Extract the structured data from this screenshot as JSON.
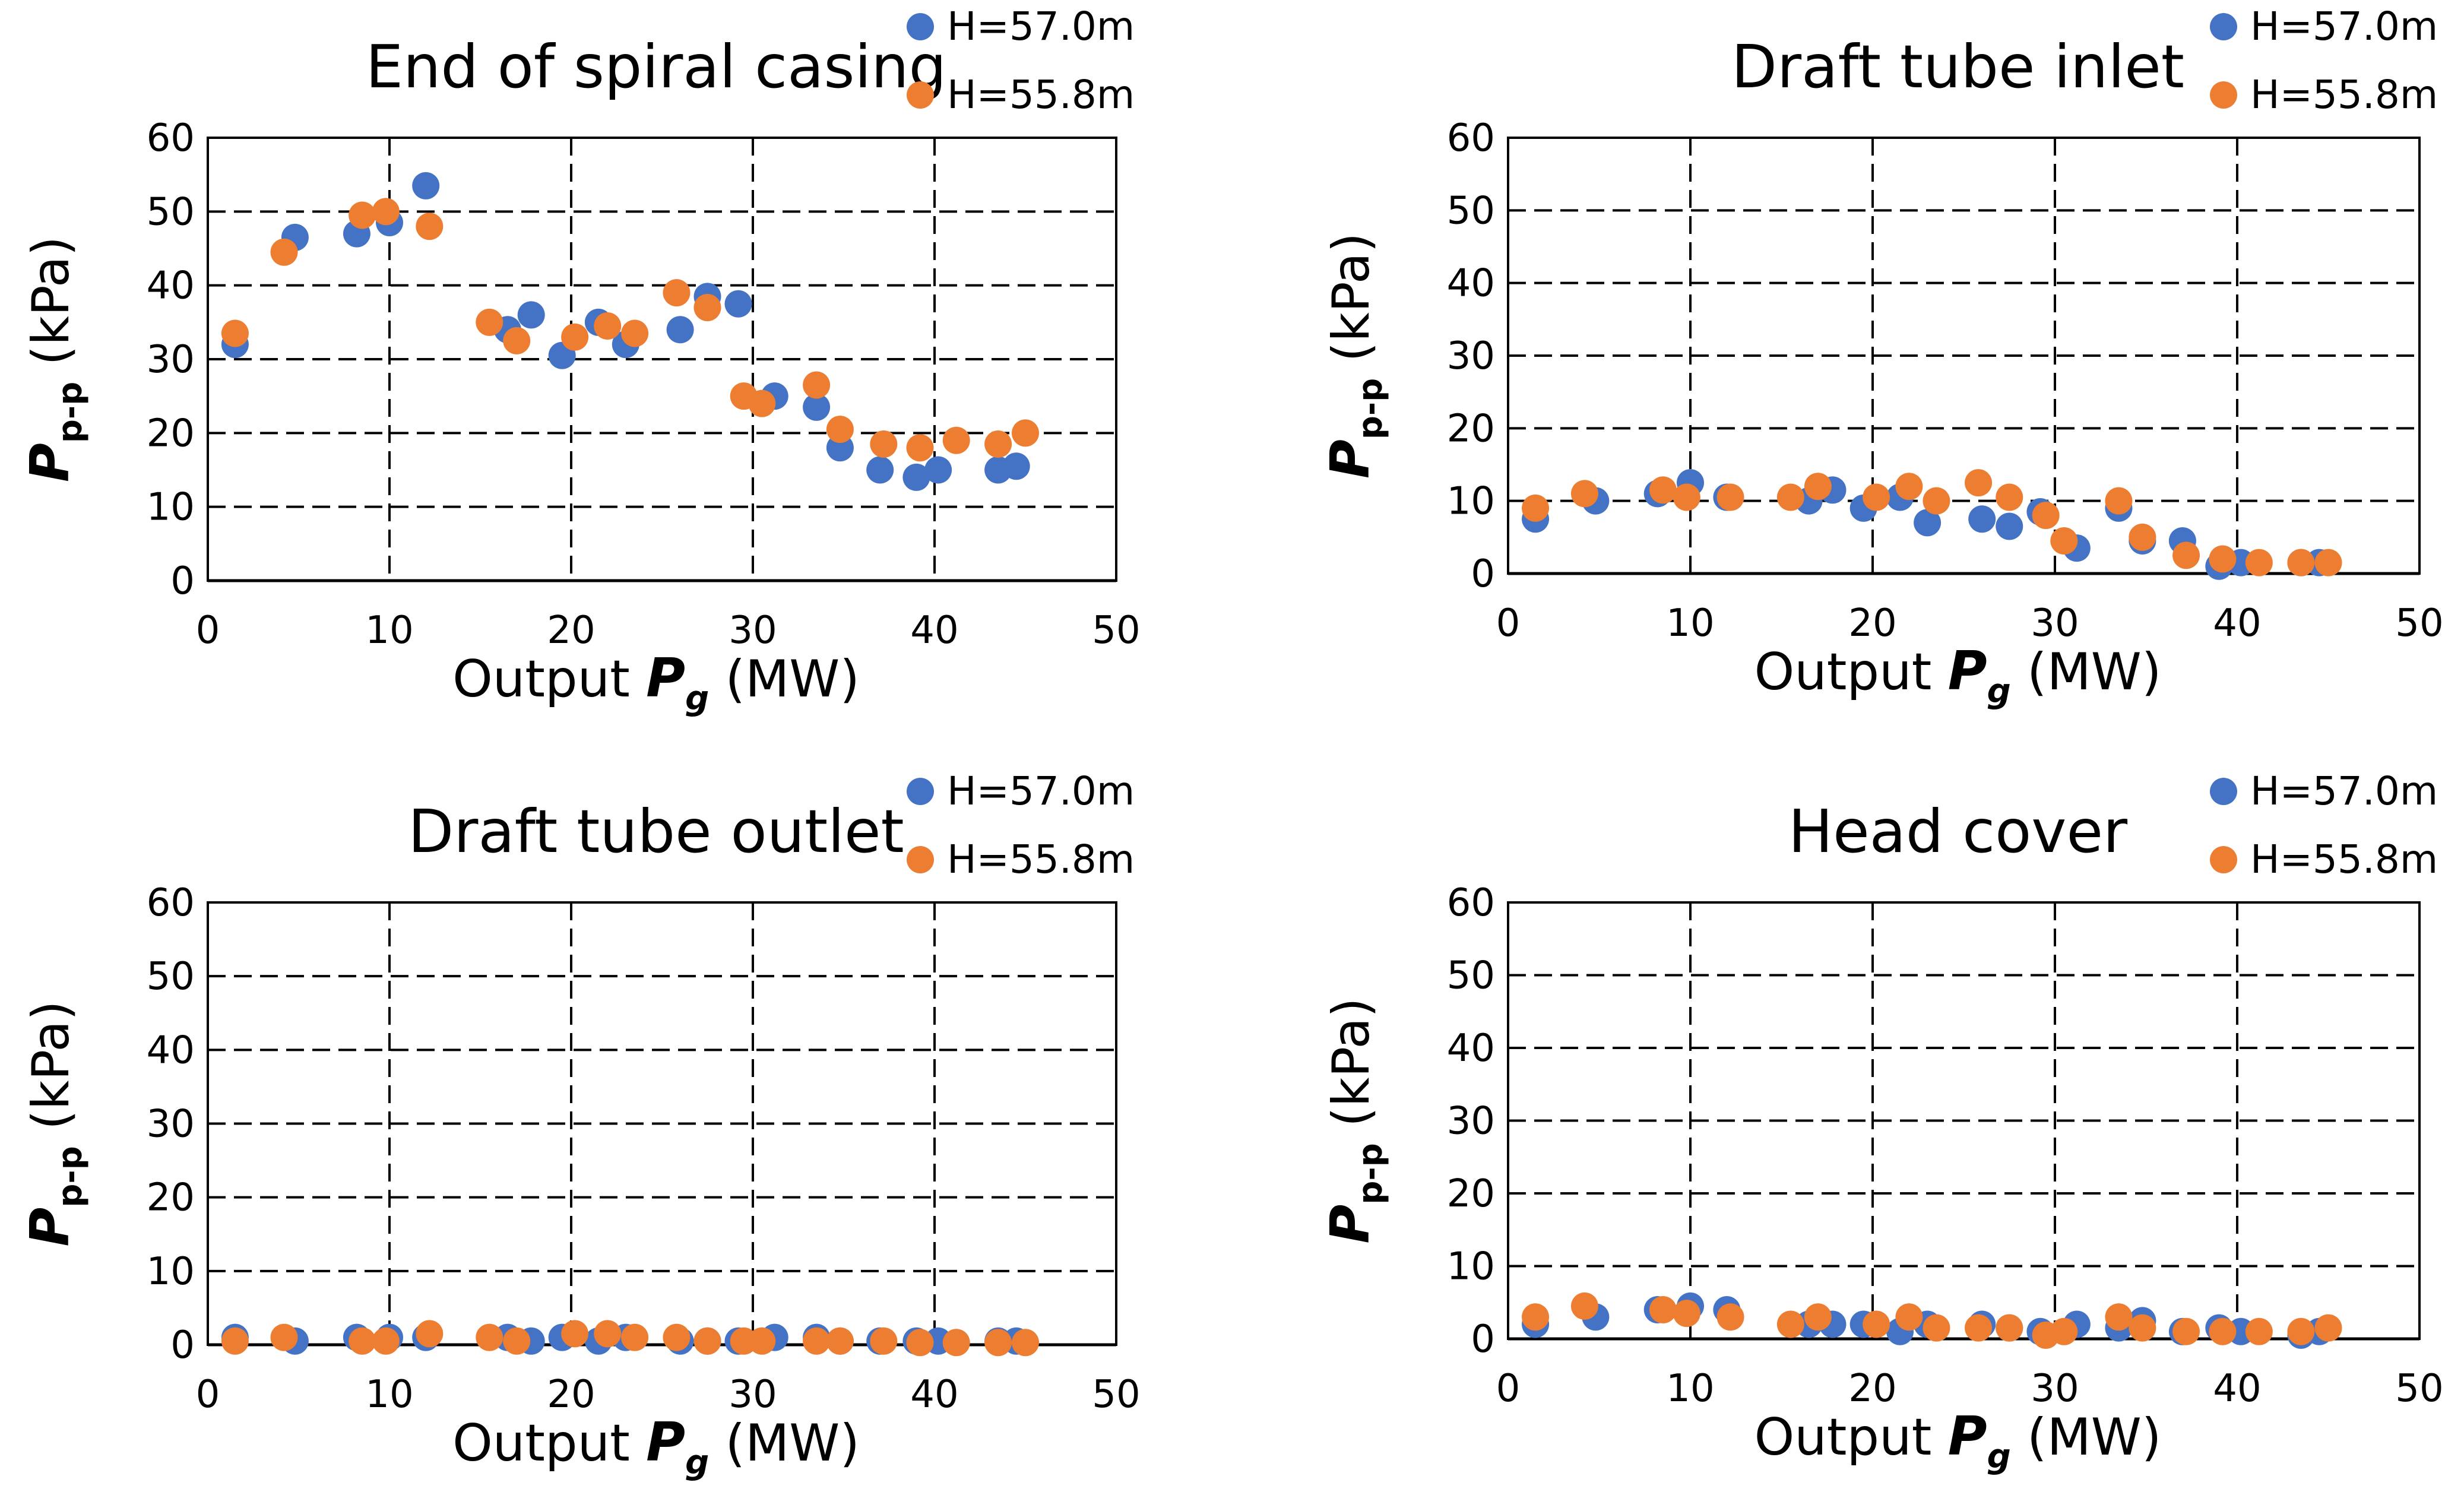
{
  "chart_data": [
    {
      "type": "scatter",
      "title": "End of spiral casing",
      "xlabel": "Output Pg (MW)",
      "xlabel_prefix": "Output ",
      "xlabel_var": "P",
      "xlabel_sub": "g",
      "xlabel_unit": " (MW)",
      "ylabel": "Pp-p (kPa)",
      "ylabel_var": "P",
      "ylabel_sub": "p-p",
      "ylabel_unit": " (kPa)",
      "xlim": [
        0,
        50
      ],
      "ylim": [
        0,
        60
      ],
      "xticks": [
        0,
        10,
        20,
        30,
        40,
        50
      ],
      "yticks": [
        0,
        10,
        20,
        30,
        40,
        50,
        60
      ],
      "grid": "dashed",
      "legend_position": "top-right",
      "series": [
        {
          "name": "H=57.0m",
          "color": "#4472C4",
          "points": [
            [
              1.5,
              32
            ],
            [
              4.8,
              46.5
            ],
            [
              8.2,
              47
            ],
            [
              10,
              48.5
            ],
            [
              12,
              53.5
            ],
            [
              16.5,
              34
            ],
            [
              17.8,
              36
            ],
            [
              19.5,
              30.5
            ],
            [
              21.5,
              35
            ],
            [
              23,
              32
            ],
            [
              26,
              34
            ],
            [
              27.5,
              38.5
            ],
            [
              29.2,
              37.5
            ],
            [
              31.2,
              25
            ],
            [
              33.5,
              23.5
            ],
            [
              34.8,
              18
            ],
            [
              37,
              15
            ],
            [
              39,
              14
            ],
            [
              40.2,
              15
            ],
            [
              43.5,
              15
            ],
            [
              44.5,
              15.5
            ]
          ]
        },
        {
          "name": "H=55.8m",
          "color": "#ED7D31",
          "points": [
            [
              1.5,
              33.5
            ],
            [
              4.2,
              44.5
            ],
            [
              8.5,
              49.5
            ],
            [
              9.8,
              50
            ],
            [
              12.2,
              48
            ],
            [
              15.5,
              35
            ],
            [
              17,
              32.5
            ],
            [
              20.2,
              33
            ],
            [
              22,
              34.5
            ],
            [
              23.5,
              33.5
            ],
            [
              25.8,
              39
            ],
            [
              27.5,
              37
            ],
            [
              29.5,
              25
            ],
            [
              30.5,
              24
            ],
            [
              33.5,
              26.5
            ],
            [
              34.8,
              20.5
            ],
            [
              37.2,
              18.5
            ],
            [
              39.2,
              18
            ],
            [
              41.2,
              19
            ],
            [
              43.5,
              18.5
            ],
            [
              45,
              20
            ]
          ]
        }
      ]
    },
    {
      "type": "scatter",
      "title": "Draft tube inlet",
      "xlabel": "Output Pg (MW)",
      "xlabel_prefix": "Output ",
      "xlabel_var": "P",
      "xlabel_sub": "g",
      "xlabel_unit": " (MW)",
      "ylabel": "Pp-p (kPa)",
      "ylabel_var": "P",
      "ylabel_sub": "p-p",
      "ylabel_unit": " (kPa)",
      "xlim": [
        0,
        50
      ],
      "ylim": [
        0,
        60
      ],
      "xticks": [
        0,
        10,
        20,
        30,
        40,
        50
      ],
      "yticks": [
        0,
        10,
        20,
        30,
        40,
        50,
        60
      ],
      "grid": "dashed",
      "legend_position": "top-right",
      "series": [
        {
          "name": "H=57.0m",
          "color": "#4472C4",
          "points": [
            [
              1.5,
              7.5
            ],
            [
              4.8,
              10
            ],
            [
              8.2,
              11
            ],
            [
              10,
              12.5
            ],
            [
              12,
              10.5
            ],
            [
              16.5,
              10
            ],
            [
              17.8,
              11.5
            ],
            [
              19.5,
              9
            ],
            [
              21.5,
              10.5
            ],
            [
              23,
              7
            ],
            [
              26,
              7.5
            ],
            [
              27.5,
              6.5
            ],
            [
              29.2,
              8.5
            ],
            [
              31.2,
              3.5
            ],
            [
              33.5,
              9
            ],
            [
              34.8,
              4.5
            ],
            [
              37,
              4.5
            ],
            [
              39,
              1
            ],
            [
              40.2,
              1.5
            ],
            [
              43.5,
              1.5
            ],
            [
              44.5,
              1.5
            ]
          ]
        },
        {
          "name": "H=55.8m",
          "color": "#ED7D31",
          "points": [
            [
              1.5,
              9
            ],
            [
              4.2,
              11
            ],
            [
              8.5,
              11.5
            ],
            [
              9.8,
              10.5
            ],
            [
              12.2,
              10.5
            ],
            [
              15.5,
              10.5
            ],
            [
              17,
              12
            ],
            [
              20.2,
              10.5
            ],
            [
              22,
              12
            ],
            [
              23.5,
              10
            ],
            [
              25.8,
              12.5
            ],
            [
              27.5,
              10.5
            ],
            [
              29.5,
              8
            ],
            [
              30.5,
              4.5
            ],
            [
              33.5,
              10
            ],
            [
              34.8,
              5
            ],
            [
              37.2,
              2.5
            ],
            [
              39.2,
              2
            ],
            [
              41.2,
              1.5
            ],
            [
              43.5,
              1.5
            ],
            [
              45,
              1.5
            ]
          ]
        }
      ]
    },
    {
      "type": "scatter",
      "title": "Draft tube outlet",
      "xlabel": "Output Pg (MW)",
      "xlabel_prefix": "Output ",
      "xlabel_var": "P",
      "xlabel_sub": "g",
      "xlabel_unit": " (MW)",
      "ylabel": "Pp-p (kPa)",
      "ylabel_var": "P",
      "ylabel_sub": "p-p",
      "ylabel_unit": " (kPa)",
      "xlim": [
        0,
        50
      ],
      "ylim": [
        0,
        60
      ],
      "xticks": [
        0,
        10,
        20,
        30,
        40,
        50
      ],
      "yticks": [
        0,
        10,
        20,
        30,
        40,
        50,
        60
      ],
      "grid": "dashed",
      "legend_position": "top-right",
      "series": [
        {
          "name": "H=57.0m",
          "color": "#4472C4",
          "points": [
            [
              1.5,
              1
            ],
            [
              4.8,
              0.5
            ],
            [
              8.2,
              1
            ],
            [
              10,
              1
            ],
            [
              12,
              1
            ],
            [
              16.5,
              1
            ],
            [
              17.8,
              0.5
            ],
            [
              19.5,
              1
            ],
            [
              21.5,
              0.5
            ],
            [
              23,
              1
            ],
            [
              26,
              0.5
            ],
            [
              27.5,
              0.5
            ],
            [
              29.2,
              0.5
            ],
            [
              31.2,
              1
            ],
            [
              33.5,
              1
            ],
            [
              34.8,
              0.5
            ],
            [
              37,
              0.5
            ],
            [
              39,
              0.5
            ],
            [
              40.2,
              0.5
            ],
            [
              43.5,
              0.5
            ],
            [
              44.5,
              0.5
            ]
          ]
        },
        {
          "name": "H=55.8m",
          "color": "#ED7D31",
          "points": [
            [
              1.5,
              0.5
            ],
            [
              4.2,
              1
            ],
            [
              8.5,
              0.5
            ],
            [
              9.8,
              0.5
            ],
            [
              12.2,
              1.5
            ],
            [
              15.5,
              1
            ],
            [
              17,
              0.5
            ],
            [
              20.2,
              1.5
            ],
            [
              22,
              1.5
            ],
            [
              23.5,
              1
            ],
            [
              25.8,
              1
            ],
            [
              27.5,
              0.5
            ],
            [
              29.5,
              0.5
            ],
            [
              30.5,
              0.5
            ],
            [
              33.5,
              0.5
            ],
            [
              34.8,
              0.5
            ],
            [
              37.2,
              0.5
            ],
            [
              39.2,
              0.3
            ],
            [
              41.2,
              0.3
            ],
            [
              43.5,
              0.3
            ],
            [
              45,
              0.3
            ]
          ]
        }
      ]
    },
    {
      "type": "scatter",
      "title": "Head cover",
      "xlabel": "Output Pg (MW)",
      "xlabel_prefix": "Output ",
      "xlabel_var": "P",
      "xlabel_sub": "g",
      "xlabel_unit": " (MW)",
      "ylabel": "Pp-p (kPa)",
      "ylabel_var": "P",
      "ylabel_sub": "p-p",
      "ylabel_unit": " (kPa)",
      "xlim": [
        0,
        50
      ],
      "ylim": [
        0,
        60
      ],
      "xticks": [
        0,
        10,
        20,
        30,
        40,
        50
      ],
      "yticks": [
        0,
        10,
        20,
        30,
        40,
        50,
        60
      ],
      "grid": "dashed",
      "legend_position": "top-right",
      "series": [
        {
          "name": "H=57.0m",
          "color": "#4472C4",
          "points": [
            [
              1.5,
              2
            ],
            [
              4.8,
              3
            ],
            [
              8.2,
              4
            ],
            [
              10,
              4.5
            ],
            [
              12,
              4
            ],
            [
              16.5,
              2
            ],
            [
              17.8,
              2
            ],
            [
              19.5,
              2
            ],
            [
              21.5,
              1
            ],
            [
              23,
              2
            ],
            [
              26,
              2
            ],
            [
              27.5,
              1.5
            ],
            [
              29.2,
              1
            ],
            [
              31.2,
              2
            ],
            [
              33.5,
              1.5
            ],
            [
              34.8,
              2.5
            ],
            [
              37,
              1
            ],
            [
              39,
              1.5
            ],
            [
              40.2,
              1
            ],
            [
              43.5,
              0.5
            ],
            [
              44.5,
              1
            ]
          ]
        },
        {
          "name": "H=55.8m",
          "color": "#ED7D31",
          "points": [
            [
              1.5,
              3
            ],
            [
              4.2,
              4.5
            ],
            [
              8.5,
              4
            ],
            [
              9.8,
              3.5
            ],
            [
              12.2,
              3
            ],
            [
              15.5,
              2
            ],
            [
              17,
              3
            ],
            [
              20.2,
              2
            ],
            [
              22,
              3
            ],
            [
              23.5,
              1.5
            ],
            [
              25.8,
              1.5
            ],
            [
              27.5,
              1.5
            ],
            [
              29.5,
              0.5
            ],
            [
              30.5,
              1
            ],
            [
              33.5,
              3
            ],
            [
              34.8,
              1.5
            ],
            [
              37.2,
              1
            ],
            [
              39.2,
              1
            ],
            [
              41.2,
              1
            ],
            [
              43.5,
              1
            ],
            [
              45,
              1.5
            ]
          ]
        }
      ]
    }
  ]
}
